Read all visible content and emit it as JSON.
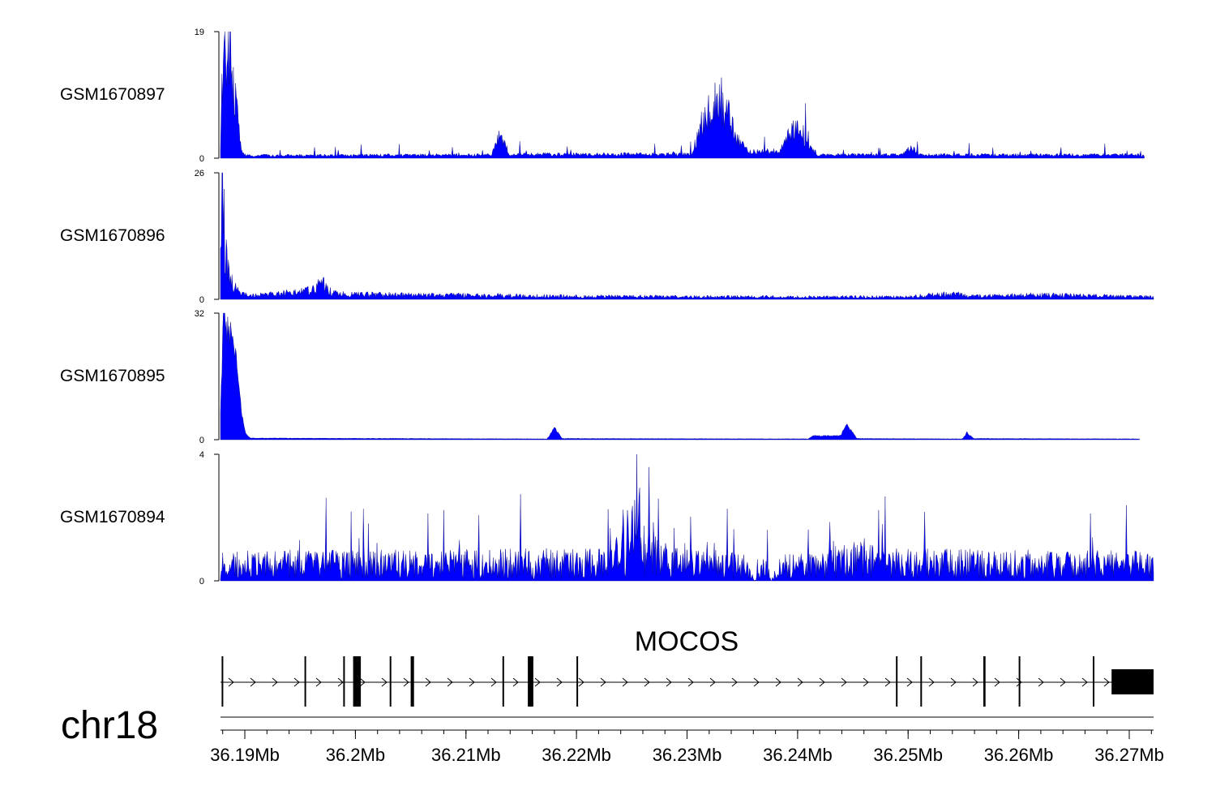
{
  "chart_data": {
    "type": "area",
    "title": "",
    "chromosome": "chr18",
    "x_unit": "Mb",
    "xlim": [
      36.1878,
      36.2722
    ],
    "x_ticks": [
      36.19,
      36.2,
      36.21,
      36.22,
      36.23,
      36.24,
      36.25,
      36.26,
      36.27
    ],
    "x_tick_labels": [
      "36.19Mb",
      "36.2Mb",
      "36.21Mb",
      "36.22Mb",
      "36.23Mb",
      "36.24Mb",
      "36.25Mb",
      "36.26Mb",
      "36.27Mb"
    ],
    "fill_color": "#0000ff",
    "series": [
      {
        "name": "GSM1670897",
        "ylim": [
          0,
          19
        ],
        "ylim_labels": [
          "0",
          "19"
        ],
        "profile": [
          [
            0,
            2
          ],
          [
            0.3,
            18
          ],
          [
            0.7,
            15
          ],
          [
            1.0,
            16
          ],
          [
            1.4,
            12
          ],
          [
            1.7,
            9
          ],
          [
            2.0,
            4
          ],
          [
            2.3,
            1
          ],
          [
            2.7,
            0.4
          ],
          [
            29.0,
            0.5
          ],
          [
            30.0,
            4
          ],
          [
            31.0,
            0.6
          ],
          [
            50.5,
            0.6
          ],
          [
            51.5,
            4.8
          ],
          [
            52.5,
            7
          ],
          [
            53.5,
            9
          ],
          [
            54.5,
            6
          ],
          [
            55.5,
            2.5
          ],
          [
            56.5,
            1
          ],
          [
            60.0,
            1
          ],
          [
            61.0,
            3.8
          ],
          [
            62.0,
            4.8
          ],
          [
            63.0,
            2
          ],
          [
            64.0,
            0.5
          ],
          [
            73.0,
            0.5
          ],
          [
            74.0,
            1.5
          ],
          [
            75.0,
            0.5
          ],
          [
            98.5,
            0.5
          ],
          [
            99.0,
            0.3
          ]
        ],
        "noise": 0.45
      },
      {
        "name": "GSM1670896",
        "ylim": [
          0,
          26
        ],
        "ylim_labels": [
          "0",
          "26"
        ],
        "profile": [
          [
            0,
            25
          ],
          [
            0.2,
            22
          ],
          [
            0.6,
            8
          ],
          [
            1.0,
            4
          ],
          [
            1.5,
            3
          ],
          [
            2.0,
            1.2
          ],
          [
            3.0,
            0.8
          ],
          [
            9.0,
            1.5
          ],
          [
            11.0,
            3
          ],
          [
            12.0,
            1.2
          ],
          [
            14.0,
            1
          ],
          [
            40.0,
            0.6
          ],
          [
            58.0,
            0.5
          ],
          [
            73.0,
            0.5
          ],
          [
            79.0,
            1.2
          ],
          [
            80.0,
            0.6
          ],
          [
            87.0,
            0.9
          ],
          [
            100,
            0.5
          ]
        ],
        "noise": 0.6
      },
      {
        "name": "GSM1670895",
        "ylim": [
          0,
          32
        ],
        "ylim_labels": [
          "0",
          "32"
        ],
        "profile": [
          [
            0,
            8
          ],
          [
            0.3,
            30
          ],
          [
            1.0,
            27
          ],
          [
            1.6,
            22
          ],
          [
            2.2,
            8
          ],
          [
            2.7,
            1.5
          ],
          [
            3.2,
            0.4
          ],
          [
            35.0,
            0.2
          ],
          [
            35.8,
            3
          ],
          [
            36.6,
            0.3
          ],
          [
            63.0,
            0.2
          ],
          [
            63.5,
            1
          ],
          [
            66.5,
            1
          ],
          [
            67.0,
            4
          ],
          [
            67.7,
            2
          ],
          [
            68.2,
            0.3
          ],
          [
            79.5,
            0.2
          ],
          [
            80.0,
            1.8
          ],
          [
            80.7,
            0.3
          ],
          [
            98.5,
            0.2
          ]
        ],
        "noise": 0.15
      },
      {
        "name": "GSM1670894",
        "ylim": [
          0,
          4
        ],
        "ylim_labels": [
          "0",
          "4"
        ],
        "profile": [
          [
            0,
            0.5
          ],
          [
            42.0,
            0.55
          ],
          [
            44.0,
            1.4
          ],
          [
            45.0,
            1.6
          ],
          [
            46.0,
            1.1
          ],
          [
            48.0,
            0.55
          ],
          [
            56.5,
            0.5
          ],
          [
            57.2,
            0
          ],
          [
            58.5,
            0.5
          ],
          [
            59.0,
            0
          ],
          [
            60.0,
            0.5
          ],
          [
            62.5,
            0.45
          ],
          [
            65.0,
            0.6
          ],
          [
            68.0,
            0.9
          ],
          [
            70.0,
            0.55
          ],
          [
            100,
            0.5
          ]
        ],
        "noise": 0.9
      }
    ],
    "gene": {
      "name": "MOCOS",
      "strand": "+",
      "exons_mb": [
        [
          36.1879,
          36.188
        ],
        [
          36.1954,
          36.1955
        ],
        [
          36.1989,
          36.199
        ],
        [
          36.1998,
          36.2005
        ],
        [
          36.2031,
          36.2032
        ],
        [
          36.205,
          36.2053
        ],
        [
          36.2133,
          36.2134
        ],
        [
          36.2156,
          36.2161
        ],
        [
          36.22,
          36.2201
        ],
        [
          36.2489,
          36.249
        ],
        [
          36.2511,
          36.2512
        ],
        [
          36.2568,
          36.257
        ],
        [
          36.26,
          36.2601
        ],
        [
          36.2667,
          36.2668
        ],
        [
          36.2684,
          36.2722
        ]
      ]
    }
  }
}
